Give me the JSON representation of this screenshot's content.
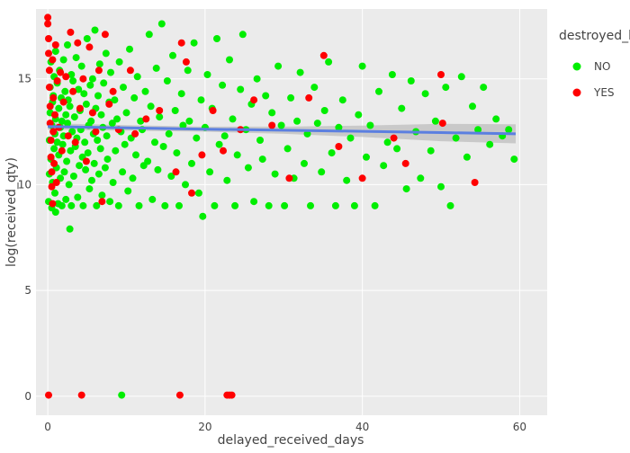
{
  "chart_data": {
    "type": "scatter",
    "title": "",
    "xlabel": "delayed_received_days",
    "ylabel": "log(received_qty)",
    "xlim": [
      -1.5,
      63.5
    ],
    "ylim": [
      -0.9,
      18.3
    ],
    "x_ticks": [
      0,
      20,
      40,
      60
    ],
    "y_ticks": [
      0,
      5,
      10,
      15
    ],
    "grid": true,
    "legend": {
      "title": "destroyed_b",
      "placement": "top-right",
      "entries": [
        {
          "label": "NO",
          "color": "#00ee00"
        },
        {
          "label": "YES",
          "color": "#ff0000"
        }
      ]
    },
    "colors": {
      "panel_background": "#ebebeb",
      "grid": "#ffffff",
      "no": "#00ee00",
      "yes": "#ff0000",
      "smooth_line": "#5b7fe0",
      "smooth_band": "#bdbdbd"
    },
    "series": [
      {
        "name": "NO",
        "color": "#00ee00",
        "points": [
          [
            0.1,
            9.2
          ],
          [
            0.2,
            10.5
          ],
          [
            0.2,
            12.1
          ],
          [
            0.3,
            13.4
          ],
          [
            0.3,
            14.6
          ],
          [
            0.4,
            11.2
          ],
          [
            0.4,
            15.8
          ],
          [
            0.5,
            8.9
          ],
          [
            0.5,
            12.8
          ],
          [
            0.6,
            13.9
          ],
          [
            0.6,
            10.1
          ],
          [
            0.7,
            14.2
          ],
          [
            0.8,
            11.7
          ],
          [
            0.8,
            15.1
          ],
          [
            0.9,
            9.6
          ],
          [
            0.9,
            12.4
          ],
          [
            1.0,
            13.1
          ],
          [
            1.0,
            16.3
          ],
          [
            1.1,
            10.8
          ],
          [
            1.2,
            14.8
          ],
          [
            1.2,
            12.0
          ],
          [
            1.3,
            9.1
          ],
          [
            1.4,
            13.6
          ],
          [
            1.4,
            11.4
          ],
          [
            1.5,
            15.4
          ],
          [
            1.6,
            12.7
          ],
          [
            1.6,
            10.3
          ],
          [
            1.7,
            14.1
          ],
          [
            1.8,
            9.0
          ],
          [
            1.8,
            13.0
          ],
          [
            1.9,
            11.9
          ],
          [
            2.0,
            15.9
          ],
          [
            2.0,
            12.3
          ],
          [
            2.1,
            10.6
          ],
          [
            2.2,
            14.4
          ],
          [
            2.3,
            13.3
          ],
          [
            2.3,
            9.3
          ],
          [
            2.4,
            11.1
          ],
          [
            2.5,
            16.6
          ],
          [
            2.5,
            12.9
          ],
          [
            2.6,
            14.0
          ],
          [
            2.7,
            10.0
          ],
          [
            2.8,
            13.7
          ],
          [
            2.9,
            11.6
          ],
          [
            3.0,
            15.2
          ],
          [
            3.0,
            9.0
          ],
          [
            3.1,
            12.5
          ],
          [
            3.2,
            14.9
          ],
          [
            3.3,
            10.4
          ],
          [
            3.4,
            13.2
          ],
          [
            3.5,
            11.8
          ],
          [
            3.6,
            16.0
          ],
          [
            3.7,
            12.2
          ],
          [
            3.8,
            9.4
          ],
          [
            3.9,
            14.5
          ],
          [
            4.0,
            10.9
          ],
          [
            4.1,
            13.5
          ],
          [
            4.2,
            12.6
          ],
          [
            4.3,
            15.6
          ],
          [
            4.4,
            11.3
          ],
          [
            4.5,
            9.0
          ],
          [
            4.6,
            14.3
          ],
          [
            4.7,
            12.0
          ],
          [
            4.8,
            10.7
          ],
          [
            4.9,
            13.8
          ],
          [
            5.0,
            16.9
          ],
          [
            5.1,
            11.5
          ],
          [
            5.2,
            12.8
          ],
          [
            5.3,
            9.8
          ],
          [
            5.4,
            14.7
          ],
          [
            5.5,
            13.0
          ],
          [
            5.6,
            10.2
          ],
          [
            5.7,
            15.0
          ],
          [
            5.8,
            12.4
          ],
          [
            5.9,
            11.0
          ],
          [
            6.0,
            17.3
          ],
          [
            6.1,
            13.6
          ],
          [
            6.2,
            9.0
          ],
          [
            6.3,
            12.1
          ],
          [
            6.4,
            14.2
          ],
          [
            6.5,
            10.5
          ],
          [
            6.6,
            15.7
          ],
          [
            6.7,
            11.7
          ],
          [
            6.8,
            13.3
          ],
          [
            6.9,
            9.5
          ],
          [
            7.0,
            12.7
          ],
          [
            7.1,
            14.8
          ],
          [
            7.3,
            10.8
          ],
          [
            7.4,
            16.2
          ],
          [
            7.5,
            12.3
          ],
          [
            7.6,
            11.2
          ],
          [
            7.8,
            13.9
          ],
          [
            7.9,
            9.2
          ],
          [
            8.0,
            15.3
          ],
          [
            8.2,
            12.9
          ],
          [
            8.3,
            10.1
          ],
          [
            8.5,
            14.0
          ],
          [
            8.6,
            11.6
          ],
          [
            8.8,
            13.1
          ],
          [
            9.0,
            9.0
          ],
          [
            9.1,
            15.8
          ],
          [
            9.3,
            12.5
          ],
          [
            9.5,
            10.6
          ],
          [
            9.6,
            14.6
          ],
          [
            9.8,
            11.9
          ],
          [
            10.0,
            13.4
          ],
          [
            10.2,
            9.7
          ],
          [
            10.4,
            16.4
          ],
          [
            10.6,
            12.2
          ],
          [
            10.8,
            10.3
          ],
          [
            11.0,
            14.1
          ],
          [
            11.2,
            11.4
          ],
          [
            11.4,
            15.1
          ],
          [
            11.6,
            9.0
          ],
          [
            11.8,
            13.0
          ],
          [
            12.0,
            12.6
          ],
          [
            12.2,
            10.9
          ],
          [
            12.4,
            14.4
          ],
          [
            12.7,
            11.1
          ],
          [
            12.9,
            17.1
          ],
          [
            13.1,
            13.7
          ],
          [
            13.3,
            9.3
          ],
          [
            13.6,
            12.0
          ],
          [
            13.8,
            15.5
          ],
          [
            14.0,
            10.7
          ],
          [
            14.2,
            13.2
          ],
          [
            14.5,
            17.6
          ],
          [
            14.7,
            11.8
          ],
          [
            14.9,
            9.0
          ],
          [
            15.2,
            14.9
          ],
          [
            15.4,
            12.4
          ],
          [
            15.7,
            10.4
          ],
          [
            15.9,
            16.1
          ],
          [
            16.2,
            13.5
          ],
          [
            16.4,
            11.5
          ],
          [
            16.7,
            9.0
          ],
          [
            17.0,
            14.3
          ],
          [
            17.2,
            12.8
          ],
          [
            17.5,
            10.0
          ],
          [
            17.8,
            15.4
          ],
          [
            18.0,
            13.0
          ],
          [
            18.3,
            11.0
          ],
          [
            18.6,
            16.7
          ],
          [
            18.9,
            12.2
          ],
          [
            19.2,
            9.6
          ],
          [
            19.5,
            14.0
          ],
          [
            19.7,
            8.5
          ],
          [
            20.0,
            12.7
          ],
          [
            20.3,
            15.2
          ],
          [
            20.6,
            10.6
          ],
          [
            20.9,
            13.6
          ],
          [
            21.2,
            9.0
          ],
          [
            21.5,
            16.9
          ],
          [
            21.8,
            11.9
          ],
          [
            22.2,
            14.7
          ],
          [
            22.5,
            12.3
          ],
          [
            22.8,
            10.2
          ],
          [
            23.1,
            15.9
          ],
          [
            23.5,
            13.1
          ],
          [
            23.8,
            9.0
          ],
          [
            24.1,
            11.4
          ],
          [
            24.5,
            14.5
          ],
          [
            24.8,
            17.1
          ],
          [
            25.2,
            12.6
          ],
          [
            25.5,
            10.8
          ],
          [
            25.9,
            13.8
          ],
          [
            26.2,
            9.2
          ],
          [
            26.6,
            15.0
          ],
          [
            27.0,
            12.1
          ],
          [
            27.3,
            11.2
          ],
          [
            27.7,
            14.2
          ],
          [
            28.1,
            9.0
          ],
          [
            28.5,
            13.4
          ],
          [
            28.9,
            10.5
          ],
          [
            29.3,
            15.6
          ],
          [
            29.7,
            12.8
          ],
          [
            30.1,
            9.0
          ],
          [
            30.5,
            11.7
          ],
          [
            30.9,
            14.1
          ],
          [
            31.3,
            10.3
          ],
          [
            31.7,
            13.0
          ],
          [
            32.1,
            15.3
          ],
          [
            32.6,
            11.0
          ],
          [
            33.0,
            12.4
          ],
          [
            33.4,
            9.0
          ],
          [
            33.9,
            14.6
          ],
          [
            34.3,
            12.9
          ],
          [
            34.8,
            10.6
          ],
          [
            35.2,
            13.5
          ],
          [
            35.7,
            15.8
          ],
          [
            36.1,
            11.5
          ],
          [
            36.6,
            9.0
          ],
          [
            37.0,
            12.7
          ],
          [
            37.5,
            14.0
          ],
          [
            38.0,
            10.2
          ],
          [
            38.5,
            12.2
          ],
          [
            39.0,
            9.0
          ],
          [
            39.5,
            13.3
          ],
          [
            40.0,
            15.6
          ],
          [
            40.5,
            11.3
          ],
          [
            41.0,
            12.8
          ],
          [
            41.6,
            9.0
          ],
          [
            42.1,
            14.4
          ],
          [
            42.7,
            10.9
          ],
          [
            43.2,
            12.0
          ],
          [
            43.8,
            15.2
          ],
          [
            44.4,
            11.7
          ],
          [
            45.0,
            13.6
          ],
          [
            45.6,
            9.8
          ],
          [
            46.2,
            14.9
          ],
          [
            46.8,
            12.5
          ],
          [
            47.4,
            10.3
          ],
          [
            48.0,
            14.3
          ],
          [
            48.7,
            11.6
          ],
          [
            49.3,
            13.0
          ],
          [
            50.0,
            9.9
          ],
          [
            50.6,
            14.6
          ],
          [
            51.2,
            9.0
          ],
          [
            51.9,
            12.2
          ],
          [
            52.6,
            15.1
          ],
          [
            53.3,
            11.3
          ],
          [
            54.0,
            13.7
          ],
          [
            54.7,
            12.6
          ],
          [
            55.4,
            14.6
          ],
          [
            56.2,
            11.9
          ],
          [
            57.0,
            13.1
          ],
          [
            57.8,
            12.3
          ],
          [
            58.6,
            12.6
          ],
          [
            59.3,
            11.2
          ],
          [
            1.0,
            8.7
          ],
          [
            2.8,
            7.9
          ],
          [
            9.4,
            0.05
          ]
        ]
      },
      {
        "name": "YES",
        "color": "#ff0000",
        "points": [
          [
            0.0,
            17.9
          ],
          [
            0.0,
            17.6
          ],
          [
            0.1,
            16.9
          ],
          [
            0.1,
            16.2
          ],
          [
            0.2,
            15.4
          ],
          [
            0.2,
            14.6
          ],
          [
            0.3,
            13.7
          ],
          [
            0.3,
            12.9
          ],
          [
            0.4,
            12.1
          ],
          [
            0.4,
            11.3
          ],
          [
            0.5,
            10.6
          ],
          [
            0.5,
            9.9
          ],
          [
            0.6,
            9.1
          ],
          [
            0.6,
            15.9
          ],
          [
            0.7,
            14.1
          ],
          [
            0.7,
            12.5
          ],
          [
            0.8,
            11.0
          ],
          [
            0.9,
            13.3
          ],
          [
            1.0,
            16.6
          ],
          [
            1.1,
            10.1
          ],
          [
            1.2,
            14.9
          ],
          [
            1.4,
            12.7
          ],
          [
            1.6,
            15.3
          ],
          [
            1.8,
            11.6
          ],
          [
            2.0,
            13.9
          ],
          [
            2.3,
            15.1
          ],
          [
            2.6,
            12.3
          ],
          [
            2.9,
            17.2
          ],
          [
            3.2,
            14.4
          ],
          [
            3.5,
            12.0
          ],
          [
            3.8,
            16.7
          ],
          [
            4.1,
            13.6
          ],
          [
            4.5,
            15.0
          ],
          [
            4.9,
            11.1
          ],
          [
            5.3,
            16.5
          ],
          [
            5.7,
            13.4
          ],
          [
            6.1,
            12.5
          ],
          [
            6.5,
            15.4
          ],
          [
            6.9,
            9.2
          ],
          [
            7.3,
            17.1
          ],
          [
            7.8,
            13.8
          ],
          [
            8.3,
            14.4
          ],
          [
            9.0,
            12.6
          ],
          [
            10.5,
            15.4
          ],
          [
            11.1,
            12.4
          ],
          [
            12.5,
            13.1
          ],
          [
            14.2,
            13.5
          ],
          [
            16.3,
            10.6
          ],
          [
            17.0,
            16.7
          ],
          [
            17.6,
            15.8
          ],
          [
            18.3,
            9.6
          ],
          [
            19.6,
            11.4
          ],
          [
            21.0,
            13.5
          ],
          [
            22.3,
            11.6
          ],
          [
            24.5,
            12.6
          ],
          [
            26.2,
            14.0
          ],
          [
            28.5,
            12.8
          ],
          [
            30.7,
            10.3
          ],
          [
            33.2,
            14.1
          ],
          [
            35.1,
            16.1
          ],
          [
            37.0,
            11.8
          ],
          [
            40.0,
            10.3
          ],
          [
            44.0,
            12.2
          ],
          [
            45.5,
            11.0
          ],
          [
            50.0,
            15.2
          ],
          [
            50.2,
            12.9
          ],
          [
            54.3,
            10.1
          ],
          [
            0.1,
            0.05
          ],
          [
            4.3,
            0.05
          ],
          [
            16.8,
            0.05
          ],
          [
            22.8,
            0.05
          ],
          [
            23.1,
            0.05
          ],
          [
            23.4,
            0.05
          ]
        ]
      }
    ],
    "smooth": {
      "x": [
        0,
        10,
        20,
        30,
        40,
        50,
        59.5
      ],
      "y": [
        12.75,
        12.68,
        12.62,
        12.57,
        12.52,
        12.46,
        12.4
      ],
      "band_low": [
        12.6,
        12.55,
        12.5,
        12.4,
        12.25,
        12.05,
        11.95
      ],
      "band_high": [
        12.9,
        12.81,
        12.74,
        12.74,
        12.79,
        12.87,
        12.85
      ]
    }
  }
}
